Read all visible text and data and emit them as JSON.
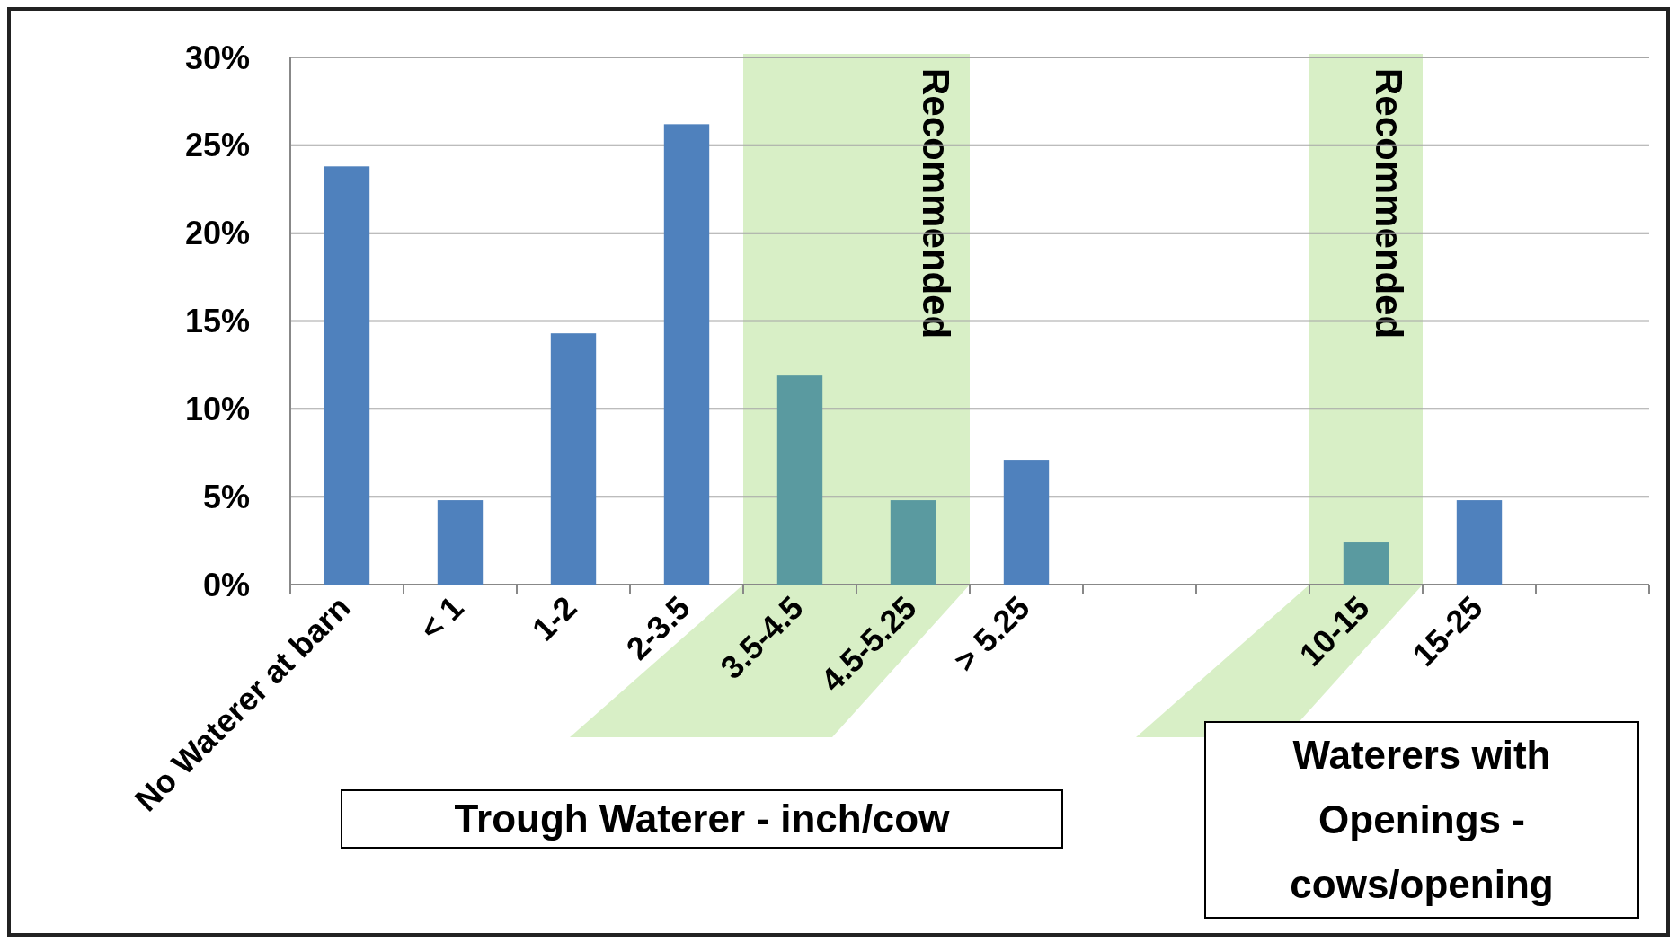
{
  "chart_data": {
    "type": "bar",
    "categories": [
      "No Waterer at barn",
      "< 1",
      "1-2",
      "2-3.5",
      "3.5-4.5",
      "4.5-5.25",
      "> 5.25",
      null,
      null,
      "10-15",
      "15-25",
      null
    ],
    "values": [
      23.8,
      4.8,
      14.3,
      26.2,
      11.9,
      4.8,
      7.1,
      null,
      null,
      2.4,
      4.8,
      null
    ],
    "colors": [
      "#4f81bd",
      "#4f81bd",
      "#4f81bd",
      "#4f81bd",
      "#5a9aa0",
      "#5a9aa0",
      "#4f81bd",
      null,
      null,
      "#5a9aa0",
      "#4f81bd",
      null
    ],
    "ylim": [
      0,
      30
    ],
    "yticks": [
      {
        "value": 0,
        "label": "0%"
      },
      {
        "value": 5,
        "label": "5%"
      },
      {
        "value": 10,
        "label": "10%"
      },
      {
        "value": 15,
        "label": "15%"
      },
      {
        "value": 20,
        "label": "20%"
      },
      {
        "value": 25,
        "label": "25%"
      },
      {
        "value": 30,
        "label": "30%"
      }
    ],
    "grid": "y",
    "bands": [
      {
        "axis": "x",
        "from": "3.5-4.5",
        "to": "4.5-5.25",
        "label": "Recommended",
        "color": "#d8efc6"
      },
      {
        "axis": "x",
        "from": "10-15",
        "to": "10-15",
        "label": "Recommended",
        "color": "#d8efc6"
      }
    ],
    "annotations": [
      "Trough Waterer - inch/cow",
      "Waterers with Openings - cows/opening"
    ]
  }
}
